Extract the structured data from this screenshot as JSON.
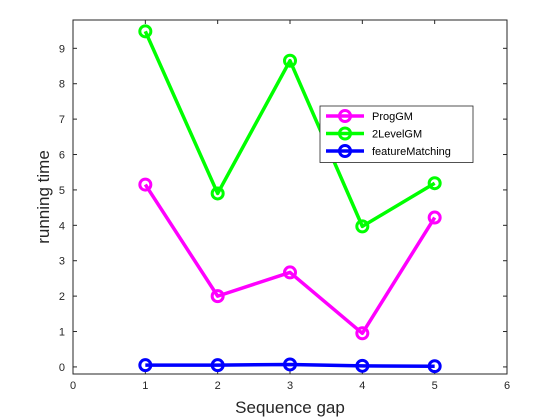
{
  "chart_data": {
    "type": "line",
    "title": "",
    "xlabel": "Sequence gap",
    "ylabel": "running time",
    "xlim": [
      0,
      6
    ],
    "ylim": [
      -0.2,
      9.8
    ],
    "xticks": [
      0,
      1,
      2,
      3,
      4,
      5,
      6
    ],
    "yticks": [
      0,
      1,
      2,
      3,
      4,
      5,
      6,
      7,
      8,
      9
    ],
    "grid": false,
    "legend_position": "top-right",
    "x": [
      1,
      2,
      3,
      4,
      5
    ],
    "series": [
      {
        "name": "ProgGM",
        "color": "#ff00ff",
        "marker": "circle",
        "values": [
          5.15,
          2.0,
          2.67,
          0.95,
          4.22
        ]
      },
      {
        "name": "2LevelGM",
        "color": "#00ff00",
        "marker": "circle",
        "values": [
          9.48,
          4.9,
          8.65,
          3.97,
          5.19
        ]
      },
      {
        "name": "featureMatching",
        "color": "#0000ff",
        "marker": "circle",
        "values": [
          0.05,
          0.05,
          0.07,
          0.03,
          0.02
        ]
      }
    ]
  }
}
